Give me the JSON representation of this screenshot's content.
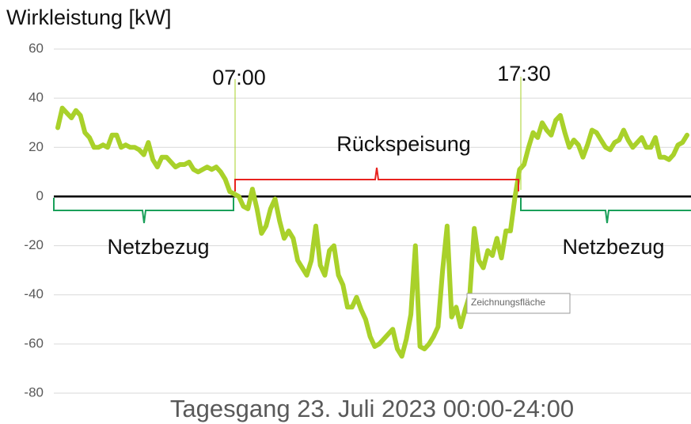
{
  "chart_data": {
    "type": "line",
    "title": "Wirkleistung [kW]",
    "x_title": "Tagesgang 23. Juli 2023 00:00-24:00",
    "annotations": {
      "start": "07:00",
      "end": "17:30",
      "feed_in": "Rückspeisung",
      "grid_left": "Netzbezug",
      "grid_right": "Netzbezug"
    },
    "tooltip": "Zeichnungsfläche",
    "ylim": [
      -80,
      60
    ],
    "yticks": [
      -80,
      -60,
      -40,
      -20,
      0,
      20,
      40,
      60
    ],
    "grid": true,
    "series": [
      {
        "color": "#a9d12a",
        "values": [
          28,
          36,
          34,
          32,
          35,
          33,
          26,
          24,
          20,
          20,
          21,
          20,
          25,
          25,
          20,
          21,
          20,
          20,
          19,
          17,
          22,
          15,
          12,
          16,
          16,
          14,
          12,
          13,
          13,
          14,
          11,
          10,
          11,
          12,
          11,
          12,
          10,
          7,
          2,
          1,
          0,
          -4,
          -5,
          3,
          -5,
          -15,
          -12,
          -5,
          -1,
          -10,
          -17,
          -14,
          -17,
          -26,
          -29,
          -32,
          -26,
          -12,
          -28,
          -32,
          -22,
          -20,
          -32,
          -36,
          -45,
          -45,
          -41,
          -46,
          -50,
          -57,
          -61,
          -60,
          -58,
          -56,
          -54,
          -62,
          -65,
          -58,
          -48,
          -20,
          -61,
          -62,
          -60,
          -57,
          -53,
          -30,
          -12,
          -49,
          -45,
          -53,
          -46,
          -40,
          -13,
          -26,
          -29,
          -22,
          -24,
          -17,
          -25,
          -14,
          -14,
          0,
          11,
          13,
          20,
          26,
          24,
          30,
          27,
          25,
          31,
          33,
          26,
          20,
          23,
          21,
          16,
          21,
          27,
          26,
          23,
          20,
          19,
          22,
          23,
          27,
          23,
          20,
          22,
          24,
          20,
          20,
          24,
          16,
          16,
          15,
          17,
          21,
          22,
          25
        ]
      }
    ]
  }
}
